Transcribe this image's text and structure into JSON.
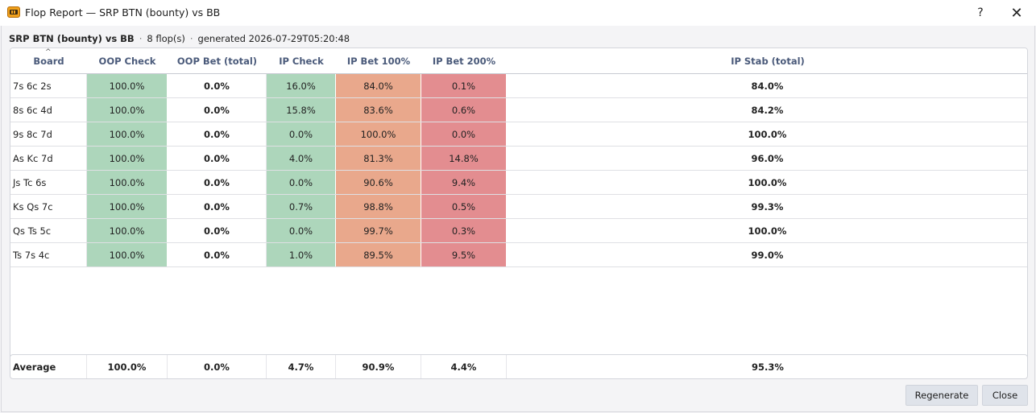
{
  "window": {
    "title": "Flop Report — SRP BTN (bounty) vs BB",
    "help_label": "?",
    "close_label": "✕"
  },
  "info": {
    "scenario": "SRP BTN (bounty) vs BB",
    "bullet": "·",
    "flop_count": "8 flop(s)",
    "generated": "generated 2026-07-29T05:20:48"
  },
  "sort_indicator": "^",
  "columns": [
    "Board",
    "OOP Check",
    "OOP Bet (total)",
    "IP Check",
    "IP Bet 100%",
    "IP Bet 200%",
    "IP Stab (total)"
  ],
  "rows": [
    {
      "board": "7s 6c 2s",
      "oop_check": "100.0%",
      "oop_bet": "0.0%",
      "ip_check": "16.0%",
      "ip_bet100": "84.0%",
      "ip_bet200": "0.1%",
      "ip_stab": "84.0%"
    },
    {
      "board": "8s 6c 4d",
      "oop_check": "100.0%",
      "oop_bet": "0.0%",
      "ip_check": "15.8%",
      "ip_bet100": "83.6%",
      "ip_bet200": "0.6%",
      "ip_stab": "84.2%"
    },
    {
      "board": "9s 8c 7d",
      "oop_check": "100.0%",
      "oop_bet": "0.0%",
      "ip_check": "0.0%",
      "ip_bet100": "100.0%",
      "ip_bet200": "0.0%",
      "ip_stab": "100.0%"
    },
    {
      "board": "As Kc 7d",
      "oop_check": "100.0%",
      "oop_bet": "0.0%",
      "ip_check": "4.0%",
      "ip_bet100": "81.3%",
      "ip_bet200": "14.8%",
      "ip_stab": "96.0%"
    },
    {
      "board": "Js Tc 6s",
      "oop_check": "100.0%",
      "oop_bet": "0.0%",
      "ip_check": "0.0%",
      "ip_bet100": "90.6%",
      "ip_bet200": "9.4%",
      "ip_stab": "100.0%"
    },
    {
      "board": "Ks Qs 7c",
      "oop_check": "100.0%",
      "oop_bet": "0.0%",
      "ip_check": "0.7%",
      "ip_bet100": "98.8%",
      "ip_bet200": "0.5%",
      "ip_stab": "99.3%"
    },
    {
      "board": "Qs Ts 5c",
      "oop_check": "100.0%",
      "oop_bet": "0.0%",
      "ip_check": "0.0%",
      "ip_bet100": "99.7%",
      "ip_bet200": "0.3%",
      "ip_stab": "100.0%"
    },
    {
      "board": "Ts 7s 4c",
      "oop_check": "100.0%",
      "oop_bet": "0.0%",
      "ip_check": "1.0%",
      "ip_bet100": "89.5%",
      "ip_bet200": "9.5%",
      "ip_stab": "99.0%"
    }
  ],
  "average": {
    "label": "Average",
    "oop_check": "100.0%",
    "oop_bet": "0.0%",
    "ip_check": "4.7%",
    "ip_bet100": "90.9%",
    "ip_bet200": "4.4%",
    "ip_stab": "95.3%"
  },
  "buttons": {
    "regenerate": "Regenerate",
    "close": "Close"
  },
  "colors": {
    "check": "#add6bb",
    "bet100": "#e9a88c",
    "bet200": "#e38d90",
    "header_text": "#4a5a7a"
  }
}
